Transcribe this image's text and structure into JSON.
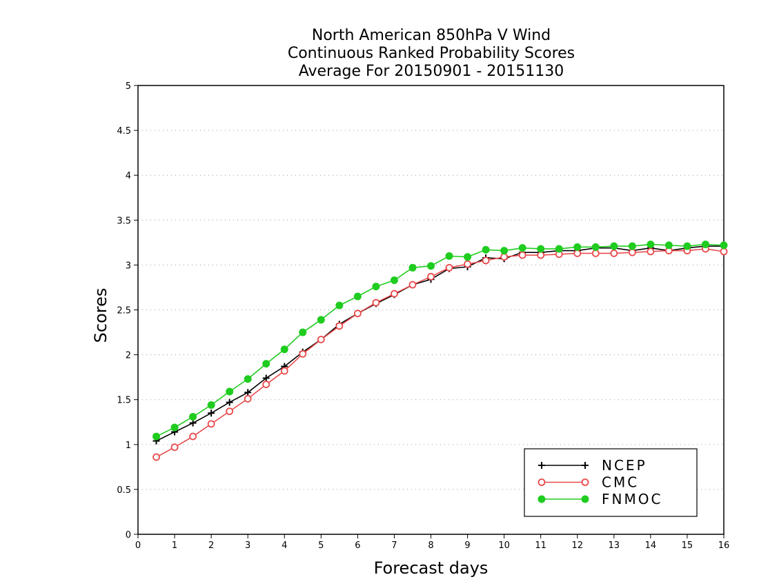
{
  "chart_data": {
    "type": "line",
    "title": [
      "North American 850hPa V Wind",
      "Continuous Ranked Probability Scores",
      "Average For 20150901 - 20151130"
    ],
    "xlabel": "Forecast days",
    "ylabel": "Scores",
    "xlim": [
      0,
      16
    ],
    "ylim": [
      0,
      5
    ],
    "xticks": [
      "0",
      "1",
      "2",
      "3",
      "4",
      "5",
      "6",
      "7",
      "8",
      "9",
      "10",
      "11",
      "12",
      "13",
      "14",
      "15",
      "16"
    ],
    "yticks": [
      "0",
      "0.5",
      "1",
      "1.5",
      "2",
      "2.5",
      "3",
      "3.5",
      "4",
      "4.5",
      "5"
    ],
    "grid": "horizontal dotted",
    "legend_position": "bottom-right",
    "x": [
      0.5,
      1,
      1.5,
      2,
      2.5,
      3,
      3.5,
      4,
      4.5,
      5,
      5.5,
      6,
      6.5,
      7,
      7.5,
      8,
      8.5,
      9,
      9.5,
      10,
      10.5,
      11,
      11.5,
      12,
      12.5,
      13,
      13.5,
      14,
      14.5,
      15,
      15.5,
      16
    ],
    "series": [
      {
        "name": "NCEP",
        "color": "#000000",
        "marker": "plus",
        "values": [
          1.04,
          1.14,
          1.24,
          1.35,
          1.47,
          1.58,
          1.74,
          1.87,
          2.03,
          2.17,
          2.34,
          2.46,
          2.57,
          2.67,
          2.78,
          2.84,
          2.96,
          2.98,
          3.08,
          3.07,
          3.14,
          3.14,
          3.16,
          3.16,
          3.19,
          3.19,
          3.16,
          3.19,
          3.16,
          3.19,
          3.21,
          3.21
        ]
      },
      {
        "name": "CMC",
        "color": "#e8484a",
        "marker": "open-circle",
        "values": [
          0.86,
          0.97,
          1.09,
          1.23,
          1.37,
          1.51,
          1.67,
          1.82,
          2.01,
          2.17,
          2.32,
          2.46,
          2.58,
          2.68,
          2.78,
          2.87,
          2.97,
          3.01,
          3.05,
          3.09,
          3.11,
          3.11,
          3.12,
          3.13,
          3.13,
          3.13,
          3.14,
          3.15,
          3.16,
          3.16,
          3.18,
          3.15
        ]
      },
      {
        "name": "FNMOC",
        "color": "#1fcc1f",
        "marker": "filled-circle",
        "values": [
          1.09,
          1.19,
          1.31,
          1.44,
          1.59,
          1.73,
          1.9,
          2.06,
          2.25,
          2.39,
          2.55,
          2.65,
          2.76,
          2.83,
          2.97,
          2.99,
          3.1,
          3.09,
          3.17,
          3.16,
          3.19,
          3.18,
          3.18,
          3.2,
          3.2,
          3.21,
          3.21,
          3.23,
          3.22,
          3.21,
          3.23,
          3.22
        ]
      }
    ]
  }
}
